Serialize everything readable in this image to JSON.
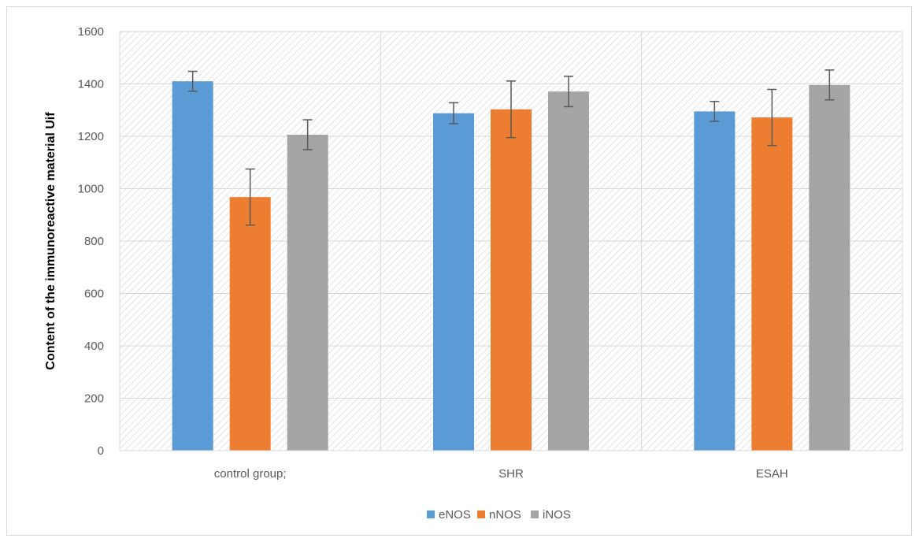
{
  "chart_data": {
    "type": "bar",
    "title": "",
    "xlabel": "",
    "ylabel": "Content of the immunoreactive material Uif",
    "ylim": [
      0,
      1600
    ],
    "yticks": [
      0,
      200,
      400,
      600,
      800,
      1000,
      1200,
      1400,
      1600
    ],
    "categories": [
      "control group;",
      "SHR",
      "ESAH"
    ],
    "series": [
      {
        "name": "eNOS",
        "color": "#5b9bd5",
        "values": [
          1410,
          1288,
          1295
        ],
        "errors": [
          38,
          40,
          38
        ]
      },
      {
        "name": "nNOS",
        "color": "#ed7d31",
        "values": [
          968,
          1303,
          1272
        ],
        "errors": [
          107,
          108,
          107
        ]
      },
      {
        "name": "iNOS",
        "color": "#a5a5a5",
        "values": [
          1206,
          1371,
          1396
        ],
        "errors": [
          57,
          58,
          57
        ]
      }
    ],
    "grid": true,
    "legend": "bottom"
  }
}
